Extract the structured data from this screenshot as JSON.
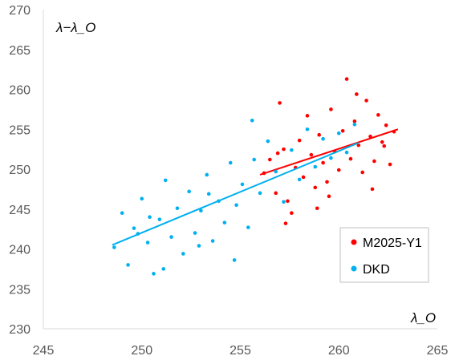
{
  "chart_data": {
    "type": "scatter",
    "title": "",
    "xlabel": "λ_O",
    "ylabel": "λ−λ_O",
    "xlim": [
      245,
      265
    ],
    "ylim": [
      230,
      270
    ],
    "x_ticks": [
      "245",
      "250",
      "255",
      "260",
      "265"
    ],
    "y_ticks": [
      "230",
      "235",
      "240",
      "245",
      "250",
      "255",
      "260",
      "265",
      "270"
    ],
    "grid": "none",
    "legend_position": "lower-right",
    "series": [
      {
        "name": "M2025-Y1",
        "color": "#ff0000",
        "trend": [
          [
            256,
            249.3
          ],
          [
            263,
            255.0
          ]
        ],
        "points": [
          [
            256.2,
            249.5
          ],
          [
            256.5,
            251.2
          ],
          [
            256.8,
            247.0
          ],
          [
            257.0,
            258.3
          ],
          [
            257.2,
            252.5
          ],
          [
            257.4,
            246.0
          ],
          [
            257.6,
            244.5
          ],
          [
            257.8,
            250.2
          ],
          [
            258.0,
            253.6
          ],
          [
            258.2,
            249.0
          ],
          [
            258.4,
            256.7
          ],
          [
            258.6,
            251.8
          ],
          [
            258.8,
            247.7
          ],
          [
            259.0,
            254.3
          ],
          [
            259.2,
            250.8
          ],
          [
            259.4,
            248.4
          ],
          [
            259.6,
            257.5
          ],
          [
            259.8,
            252.2
          ],
          [
            260.0,
            249.9
          ],
          [
            260.2,
            254.8
          ],
          [
            260.4,
            261.3
          ],
          [
            260.6,
            251.3
          ],
          [
            260.8,
            256.0
          ],
          [
            261.0,
            253.0
          ],
          [
            261.2,
            249.6
          ],
          [
            261.4,
            258.6
          ],
          [
            261.6,
            254.1
          ],
          [
            261.8,
            251.0
          ],
          [
            262.0,
            256.8
          ],
          [
            262.2,
            253.4
          ],
          [
            262.4,
            255.5
          ],
          [
            262.6,
            250.6
          ],
          [
            262.8,
            254.7
          ],
          [
            257.3,
            243.2
          ],
          [
            258.9,
            245.1
          ],
          [
            261.7,
            247.5
          ],
          [
            260.9,
            259.4
          ],
          [
            259.5,
            246.6
          ],
          [
            262.3,
            252.9
          ],
          [
            256.9,
            252.0
          ]
        ]
      },
      {
        "name": "DKD",
        "color": "#00b0f0",
        "trend": [
          [
            248.5,
            240.5
          ],
          [
            261,
            253.3
          ]
        ],
        "points": [
          [
            248.6,
            240.2
          ],
          [
            249.0,
            244.5
          ],
          [
            249.3,
            238.0
          ],
          [
            249.6,
            242.6
          ],
          [
            250.0,
            246.3
          ],
          [
            250.3,
            240.8
          ],
          [
            250.6,
            236.9
          ],
          [
            250.9,
            243.7
          ],
          [
            251.2,
            248.6
          ],
          [
            251.5,
            241.5
          ],
          [
            251.8,
            245.1
          ],
          [
            252.1,
            239.4
          ],
          [
            252.4,
            247.2
          ],
          [
            252.7,
            242.0
          ],
          [
            253.0,
            244.8
          ],
          [
            253.3,
            249.3
          ],
          [
            253.6,
            241.0
          ],
          [
            253.9,
            246.0
          ],
          [
            254.2,
            243.3
          ],
          [
            254.5,
            250.8
          ],
          [
            254.8,
            245.5
          ],
          [
            255.1,
            248.1
          ],
          [
            255.4,
            242.7
          ],
          [
            255.7,
            251.2
          ],
          [
            256.0,
            247.0
          ],
          [
            256.4,
            253.5
          ],
          [
            256.8,
            249.7
          ],
          [
            257.2,
            245.9
          ],
          [
            257.6,
            252.4
          ],
          [
            258.0,
            248.7
          ],
          [
            258.4,
            255.0
          ],
          [
            258.8,
            250.3
          ],
          [
            259.2,
            253.8
          ],
          [
            259.6,
            251.4
          ],
          [
            260.0,
            254.5
          ],
          [
            260.4,
            252.1
          ],
          [
            260.8,
            255.6
          ],
          [
            251.1,
            237.5
          ],
          [
            250.4,
            244.0
          ],
          [
            252.9,
            240.4
          ],
          [
            249.8,
            241.9
          ],
          [
            253.4,
            246.9
          ],
          [
            255.6,
            256.1
          ],
          [
            254.7,
            238.6
          ]
        ]
      }
    ]
  }
}
